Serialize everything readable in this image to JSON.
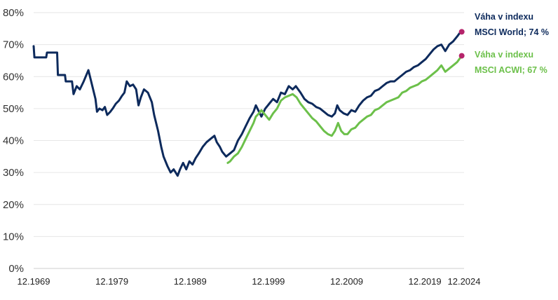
{
  "chart_data": {
    "type": "line",
    "title": "",
    "xlabel": "",
    "ylabel": "",
    "x_range": [
      "12.1969",
      "12.2024"
    ],
    "ylim": [
      0,
      80
    ],
    "y_ticks": [
      "0%",
      "10%",
      "20%",
      "30%",
      "40%",
      "50%",
      "60%",
      "70%",
      "80%"
    ],
    "x_ticks": [
      "12.1969",
      "12.1979",
      "12.1989",
      "12.1999",
      "12.2009",
      "12.2019",
      "12.2024"
    ],
    "grid": "horizontal",
    "legend": "none",
    "series": [
      {
        "name": "",
        "color": "#0d2a5c",
        "endpoint_color": "#b5246b",
        "points": [
          [
            1969.9,
            69.5
          ],
          [
            1970.0,
            66
          ],
          [
            1971.5,
            66
          ],
          [
            1971.6,
            67.5
          ],
          [
            1972.9,
            67.5
          ],
          [
            1973.0,
            60.5
          ],
          [
            1973.9,
            60.5
          ],
          [
            1974.0,
            58.5
          ],
          [
            1974.8,
            58.5
          ],
          [
            1975.0,
            54.5
          ],
          [
            1975.4,
            57
          ],
          [
            1975.8,
            56
          ],
          [
            1976.3,
            58.5
          ],
          [
            1976.9,
            62
          ],
          [
            1977.3,
            58
          ],
          [
            1977.8,
            53
          ],
          [
            1978.0,
            49
          ],
          [
            1978.3,
            50
          ],
          [
            1978.7,
            49.5
          ],
          [
            1979.0,
            50.5
          ],
          [
            1979.3,
            48
          ],
          [
            1979.7,
            49
          ],
          [
            1980.0,
            50
          ],
          [
            1980.4,
            51.5
          ],
          [
            1980.8,
            52.5
          ],
          [
            1981.2,
            54
          ],
          [
            1981.5,
            55
          ],
          [
            1981.8,
            58.5
          ],
          [
            1982.2,
            57
          ],
          [
            1982.6,
            57.5
          ],
          [
            1983.0,
            56
          ],
          [
            1983.3,
            51
          ],
          [
            1983.6,
            53.5
          ],
          [
            1984.0,
            56
          ],
          [
            1984.5,
            55
          ],
          [
            1985.0,
            52
          ],
          [
            1985.3,
            48
          ],
          [
            1985.8,
            43
          ],
          [
            1986.2,
            38
          ],
          [
            1986.5,
            35
          ],
          [
            1987.0,
            32
          ],
          [
            1987.4,
            30
          ],
          [
            1987.8,
            31
          ],
          [
            1988.3,
            29
          ],
          [
            1988.6,
            31
          ],
          [
            1989.0,
            33
          ],
          [
            1989.4,
            31
          ],
          [
            1989.8,
            33.5
          ],
          [
            1990.2,
            32.5
          ],
          [
            1990.6,
            34.5
          ],
          [
            1991.0,
            36
          ],
          [
            1991.5,
            38
          ],
          [
            1992.0,
            39.5
          ],
          [
            1992.5,
            40.5
          ],
          [
            1993.0,
            41.5
          ],
          [
            1993.3,
            39.5
          ],
          [
            1993.7,
            38
          ],
          [
            1994.0,
            36.5
          ],
          [
            1994.5,
            35
          ],
          [
            1995.0,
            36
          ],
          [
            1995.5,
            37
          ],
          [
            1996.0,
            40
          ],
          [
            1996.5,
            42
          ],
          [
            1997.0,
            44.5
          ],
          [
            1997.5,
            47
          ],
          [
            1998.0,
            49
          ],
          [
            1998.3,
            51
          ],
          [
            1998.7,
            49
          ],
          [
            1999.0,
            47.5
          ],
          [
            1999.5,
            50
          ],
          [
            2000.0,
            51.5
          ],
          [
            2000.5,
            53
          ],
          [
            2001.0,
            52
          ],
          [
            2001.5,
            55
          ],
          [
            2002.0,
            54.5
          ],
          [
            2002.5,
            57
          ],
          [
            2003.0,
            56
          ],
          [
            2003.4,
            57
          ],
          [
            2004.0,
            55
          ],
          [
            2004.5,
            53
          ],
          [
            2005.0,
            52
          ],
          [
            2005.5,
            51.5
          ],
          [
            2006.0,
            50.5
          ],
          [
            2006.5,
            50
          ],
          [
            2007.0,
            49
          ],
          [
            2007.5,
            48
          ],
          [
            2008.0,
            47.5
          ],
          [
            2008.4,
            48.5
          ],
          [
            2008.7,
            51
          ],
          [
            2009.0,
            49.5
          ],
          [
            2009.5,
            48.5
          ],
          [
            2010.0,
            48
          ],
          [
            2010.5,
            49.5
          ],
          [
            2011.0,
            49
          ],
          [
            2011.5,
            51
          ],
          [
            2012.0,
            52.5
          ],
          [
            2012.5,
            53.5
          ],
          [
            2013.0,
            54
          ],
          [
            2013.5,
            55.5
          ],
          [
            2014.0,
            56
          ],
          [
            2014.5,
            57
          ],
          [
            2015.0,
            58
          ],
          [
            2015.5,
            58.5
          ],
          [
            2016.0,
            58.5
          ],
          [
            2016.5,
            59.5
          ],
          [
            2017.0,
            60.5
          ],
          [
            2017.5,
            61.5
          ],
          [
            2018.0,
            62
          ],
          [
            2018.5,
            63
          ],
          [
            2019.0,
            63.5
          ],
          [
            2019.5,
            64.5
          ],
          [
            2020.0,
            65.5
          ],
          [
            2020.5,
            67
          ],
          [
            2021.0,
            68.5
          ],
          [
            2021.5,
            69.5
          ],
          [
            2022.0,
            70
          ],
          [
            2022.5,
            68
          ],
          [
            2023.0,
            70
          ],
          [
            2023.5,
            71
          ],
          [
            2024.0,
            72.5
          ],
          [
            2024.3,
            73.5
          ],
          [
            2024.6,
            74
          ]
        ]
      },
      {
        "name": "",
        "color": "#6cc04a",
        "endpoint_color": "#b5246b",
        "points": [
          [
            1994.7,
            33
          ],
          [
            1995.0,
            33.5
          ],
          [
            1995.5,
            35
          ],
          [
            1996.0,
            36
          ],
          [
            1996.5,
            38
          ],
          [
            1997.0,
            40.5
          ],
          [
            1997.5,
            43
          ],
          [
            1998.0,
            45.5
          ],
          [
            1998.3,
            47.5
          ],
          [
            1998.7,
            48.5
          ],
          [
            1999.0,
            49.5
          ],
          [
            1999.5,
            48
          ],
          [
            2000.0,
            46.5
          ],
          [
            2000.5,
            48.5
          ],
          [
            2001.0,
            50
          ],
          [
            2001.5,
            52.5
          ],
          [
            2002.0,
            53.5
          ],
          [
            2002.5,
            54
          ],
          [
            2003.0,
            54.5
          ],
          [
            2003.5,
            53.5
          ],
          [
            2004.0,
            51.5
          ],
          [
            2004.5,
            50
          ],
          [
            2005.0,
            48.5
          ],
          [
            2005.5,
            47
          ],
          [
            2006.0,
            46
          ],
          [
            2006.5,
            44.5
          ],
          [
            2007.0,
            43
          ],
          [
            2007.5,
            42
          ],
          [
            2008.0,
            41.5
          ],
          [
            2008.4,
            43
          ],
          [
            2008.8,
            45.5
          ],
          [
            2009.2,
            43
          ],
          [
            2009.6,
            42
          ],
          [
            2010.0,
            42
          ],
          [
            2010.5,
            43.5
          ],
          [
            2011.0,
            44
          ],
          [
            2011.5,
            45.5
          ],
          [
            2012.0,
            46.5
          ],
          [
            2012.5,
            47.5
          ],
          [
            2013.0,
            48
          ],
          [
            2013.5,
            49.5
          ],
          [
            2014.0,
            50
          ],
          [
            2014.5,
            51
          ],
          [
            2015.0,
            52
          ],
          [
            2015.5,
            52.5
          ],
          [
            2016.0,
            53
          ],
          [
            2016.5,
            53.5
          ],
          [
            2017.0,
            55
          ],
          [
            2017.5,
            55.5
          ],
          [
            2018.0,
            56.5
          ],
          [
            2018.5,
            57
          ],
          [
            2019.0,
            57.5
          ],
          [
            2019.5,
            58.5
          ],
          [
            2020.0,
            59
          ],
          [
            2020.5,
            60
          ],
          [
            2021.0,
            61
          ],
          [
            2021.5,
            62
          ],
          [
            2022.0,
            63.5
          ],
          [
            2022.5,
            61.5
          ],
          [
            2023.0,
            62.5
          ],
          [
            2023.5,
            63.5
          ],
          [
            2024.0,
            64.5
          ],
          [
            2024.3,
            65.5
          ],
          [
            2024.6,
            66.5
          ]
        ]
      }
    ],
    "annotations": [
      {
        "lines": [
          "Váha v indexu",
          "MSCI World; 74 %"
        ],
        "color": "#0d2a5c"
      },
      {
        "lines": [
          "Váha v indexu",
          "MSCI ACWI; 67 %"
        ],
        "color": "#6cc04a"
      }
    ]
  }
}
